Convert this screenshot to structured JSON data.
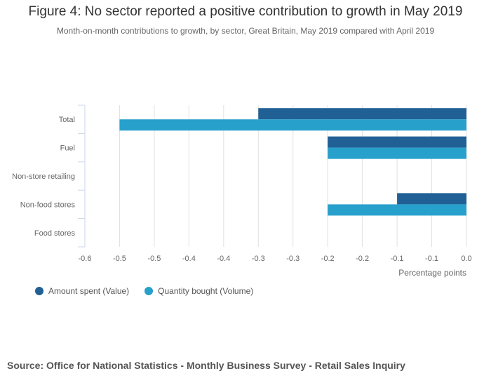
{
  "chart_data": {
    "type": "bar",
    "orientation": "horizontal",
    "title": "Figure 4: No sector reported a positive contribution to growth in May 2019",
    "subtitle": "Month-on-month contributions to growth, by sector, Great Britain, May 2019 compared with April 2019",
    "categories": [
      "Total",
      "Fuel",
      "Non-store retailing",
      "Non-food stores",
      "Food stores"
    ],
    "series": [
      {
        "name": "Amount spent (Value)",
        "color": "#206095",
        "values": [
          -0.3,
          -0.2,
          0.0,
          -0.1,
          0.0
        ]
      },
      {
        "name": "Quantity bought (Volume)",
        "color": "#27a0cc",
        "values": [
          -0.5,
          -0.2,
          0.0,
          -0.2,
          0.0
        ]
      }
    ],
    "xlabel": "Percentage points",
    "ylabel": "",
    "xlim": [
      -0.55,
      0.0
    ],
    "x_ticks": [
      -0.55,
      -0.5,
      -0.45,
      -0.4,
      -0.35,
      -0.3,
      -0.25,
      -0.2,
      -0.15,
      -0.1,
      -0.05,
      0.0
    ],
    "x_tick_labels": [
      "-0.6",
      "-0.5",
      "-0.5",
      "-0.4",
      "-0.4",
      "-0.3",
      "-0.3",
      "-0.2",
      "-0.2",
      "-0.1",
      "-0.1",
      "0.0"
    ],
    "grid": true,
    "legend_position": "bottom-left"
  },
  "source": "Source: Office for National Statistics - Monthly Business Survey - Retail Sales Inquiry"
}
